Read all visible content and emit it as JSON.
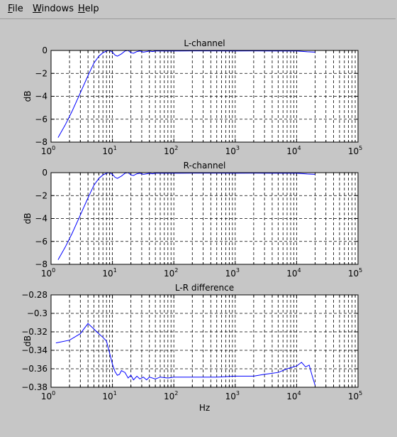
{
  "menu": {
    "file": {
      "mnemonic": "F",
      "rest": "ile"
    },
    "windows": {
      "mnemonic": "W",
      "rest": "indows"
    },
    "help": {
      "mnemonic": "H",
      "rest": "elp"
    }
  },
  "colors": {
    "background": "#c6c6c6",
    "plot_bg": "#ffffff",
    "line": "#0000ff",
    "grid": "#000000"
  },
  "chart_data": [
    {
      "type": "line",
      "title": "L-channel",
      "xlabel": "",
      "ylabel": "dB",
      "xscale": "log",
      "xlim": [
        1,
        100000
      ],
      "ylim": [
        -8,
        0
      ],
      "xtick_exponents": [
        "0",
        "1",
        "2",
        "3",
        "4",
        "5"
      ],
      "ytick_labels": [
        "0",
        "−2",
        "−4",
        "−6",
        "−8"
      ],
      "ytick_values": [
        0,
        -2,
        -4,
        -6,
        -8
      ],
      "grid": true,
      "series": [
        {
          "x": [
            1.3,
            1.7,
            2.2,
            3,
            4,
            5,
            6,
            7,
            8,
            9,
            10,
            11,
            12,
            14,
            16,
            18,
            20,
            22,
            25,
            28,
            32,
            36,
            40,
            45,
            50,
            60,
            80,
            100,
            200,
            500,
            1000,
            2000,
            5000,
            10000,
            15000,
            20000
          ],
          "y": [
            -7.6,
            -6.5,
            -5.3,
            -3.7,
            -2.2,
            -1.1,
            -0.5,
            -0.2,
            -0.05,
            0,
            -0.15,
            -0.4,
            -0.5,
            -0.3,
            -0.05,
            0,
            -0.2,
            -0.25,
            -0.1,
            -0.05,
            -0.15,
            -0.1,
            -0.05,
            -0.1,
            -0.05,
            -0.05,
            -0.05,
            -0.05,
            -0.04,
            -0.04,
            -0.05,
            -0.04,
            -0.05,
            -0.05,
            -0.12,
            -0.15
          ]
        }
      ]
    },
    {
      "type": "line",
      "title": "R-channel",
      "xlabel": "",
      "ylabel": "dB",
      "xscale": "log",
      "xlim": [
        1,
        100000
      ],
      "ylim": [
        -8,
        0
      ],
      "xtick_exponents": [
        "0",
        "1",
        "2",
        "3",
        "4",
        "5"
      ],
      "ytick_labels": [
        "0",
        "−2",
        "−4",
        "−6",
        "−8"
      ],
      "ytick_values": [
        0,
        -2,
        -4,
        -6,
        -8
      ],
      "grid": true,
      "series": [
        {
          "x": [
            1.3,
            1.7,
            2.2,
            3,
            4,
            5,
            6,
            7,
            8,
            9,
            10,
            11,
            12,
            14,
            16,
            18,
            20,
            22,
            25,
            28,
            32,
            36,
            40,
            45,
            50,
            60,
            80,
            100,
            200,
            500,
            1000,
            2000,
            5000,
            10000,
            15000,
            20000
          ],
          "y": [
            -7.6,
            -6.5,
            -5.3,
            -3.7,
            -2.2,
            -1.1,
            -0.5,
            -0.2,
            -0.05,
            0,
            -0.15,
            -0.4,
            -0.5,
            -0.3,
            -0.05,
            0,
            -0.2,
            -0.25,
            -0.1,
            -0.05,
            -0.15,
            -0.1,
            -0.05,
            -0.1,
            -0.05,
            -0.05,
            -0.05,
            -0.05,
            -0.04,
            -0.04,
            -0.05,
            -0.04,
            -0.05,
            -0.05,
            -0.12,
            -0.15
          ]
        }
      ]
    },
    {
      "type": "line",
      "title": "L-R difference",
      "xlabel": "Hz",
      "ylabel": "dB",
      "xscale": "log",
      "xlim": [
        1,
        100000
      ],
      "ylim": [
        -0.38,
        -0.28
      ],
      "xtick_exponents": [
        "0",
        "1",
        "2",
        "3",
        "4",
        "5"
      ],
      "ytick_labels": [
        "−0.28",
        "−0.3",
        "−0.32",
        "−0.34",
        "−0.36",
        "−0.38"
      ],
      "ytick_values": [
        -0.28,
        -0.3,
        -0.32,
        -0.34,
        -0.36,
        -0.38
      ],
      "grid": true,
      "series": [
        {
          "x": [
            1.2,
            2,
            3,
            4,
            5,
            6,
            7,
            8,
            9,
            10,
            11,
            12,
            13,
            14,
            16,
            18,
            20,
            22,
            25,
            28,
            32,
            36,
            40,
            50,
            60,
            80,
            100,
            200,
            500,
            1000,
            2000,
            3000,
            5000,
            7000,
            10000,
            12000,
            14000,
            16000,
            18000,
            20000
          ],
          "y": [
            -0.332,
            -0.329,
            -0.322,
            -0.311,
            -0.317,
            -0.322,
            -0.326,
            -0.33,
            -0.343,
            -0.355,
            -0.363,
            -0.367,
            -0.366,
            -0.362,
            -0.364,
            -0.37,
            -0.367,
            -0.372,
            -0.368,
            -0.371,
            -0.369,
            -0.372,
            -0.369,
            -0.371,
            -0.369,
            -0.37,
            -0.369,
            -0.369,
            -0.369,
            -0.368,
            -0.368,
            -0.366,
            -0.364,
            -0.36,
            -0.357,
            -0.353,
            -0.358,
            -0.356,
            -0.368,
            -0.378
          ]
        }
      ]
    }
  ]
}
